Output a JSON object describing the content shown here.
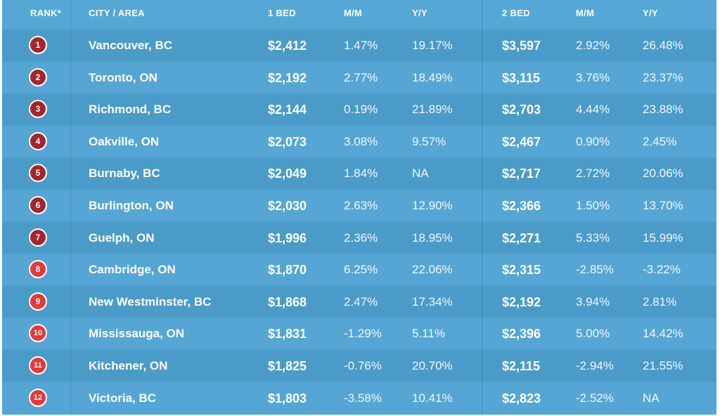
{
  "header": {
    "rank": "RANK*",
    "city": "CITY / AREA",
    "bed1": "1 BED",
    "mm1": "M/M",
    "yy1": "Y/Y",
    "bed2": "2 BED",
    "mm2": "M/M",
    "yy2": "Y/Y"
  },
  "colors": {
    "badge_dark": "#a3262b",
    "badge_light": "#e23a3a"
  },
  "rows": [
    {
      "rank": "1",
      "city": "Vancouver, BC",
      "bed1": "$2,412",
      "mm1": "1.47%",
      "yy1": "19.17%",
      "bed2": "$3,597",
      "mm2": "2.92%",
      "yy2": "26.48%"
    },
    {
      "rank": "2",
      "city": "Toronto, ON",
      "bed1": "$2,192",
      "mm1": "2.77%",
      "yy1": "18.49%",
      "bed2": "$3,115",
      "mm2": "3.76%",
      "yy2": "23.37%"
    },
    {
      "rank": "3",
      "city": "Richmond, BC",
      "bed1": "$2,144",
      "mm1": "0.19%",
      "yy1": "21.89%",
      "bed2": "$2,703",
      "mm2": "4.44%",
      "yy2": "23.88%"
    },
    {
      "rank": "4",
      "city": "Oakville, ON",
      "bed1": "$2,073",
      "mm1": "3.08%",
      "yy1": "9.57%",
      "bed2": "$2,467",
      "mm2": "0.90%",
      "yy2": "2.45%"
    },
    {
      "rank": "5",
      "city": "Burnaby, BC",
      "bed1": "$2,049",
      "mm1": "1.84%",
      "yy1": "NA",
      "bed2": "$2,717",
      "mm2": "2.72%",
      "yy2": "20.06%"
    },
    {
      "rank": "6",
      "city": "Burlington, ON",
      "bed1": "$2,030",
      "mm1": "2.63%",
      "yy1": "12.90%",
      "bed2": "$2,366",
      "mm2": "1.50%",
      "yy2": "13.70%"
    },
    {
      "rank": "7",
      "city": "Guelph, ON",
      "bed1": "$1,996",
      "mm1": "2.36%",
      "yy1": "18.95%",
      "bed2": "$2,271",
      "mm2": "5.33%",
      "yy2": "15.99%"
    },
    {
      "rank": "8",
      "city": "Cambridge, ON",
      "bed1": "$1,870",
      "mm1": "6.25%",
      "yy1": "22.06%",
      "bed2": "$2,315",
      "mm2": "-2.85%",
      "yy2": "-3.22%"
    },
    {
      "rank": "9",
      "city": "New Westminster, BC",
      "bed1": "$1,868",
      "mm1": "2.47%",
      "yy1": "17.34%",
      "bed2": "$2,192",
      "mm2": "3.94%",
      "yy2": "2.81%"
    },
    {
      "rank": "10",
      "city": "Mississauga, ON",
      "bed1": "$1,831",
      "mm1": "-1.29%",
      "yy1": "5.11%",
      "bed2": "$2,396",
      "mm2": "5.00%",
      "yy2": "14.42%"
    },
    {
      "rank": "11",
      "city": "Kitchener, ON",
      "bed1": "$1,825",
      "mm1": "-0.76%",
      "yy1": "20.70%",
      "bed2": "$2,115",
      "mm2": "-2.94%",
      "yy2": "21.55%"
    },
    {
      "rank": "12",
      "city": "Victoria, BC",
      "bed1": "$1,803",
      "mm1": "-3.58%",
      "yy1": "10.41%",
      "bed2": "$2,823",
      "mm2": "-2.52%",
      "yy2": "NA"
    }
  ]
}
